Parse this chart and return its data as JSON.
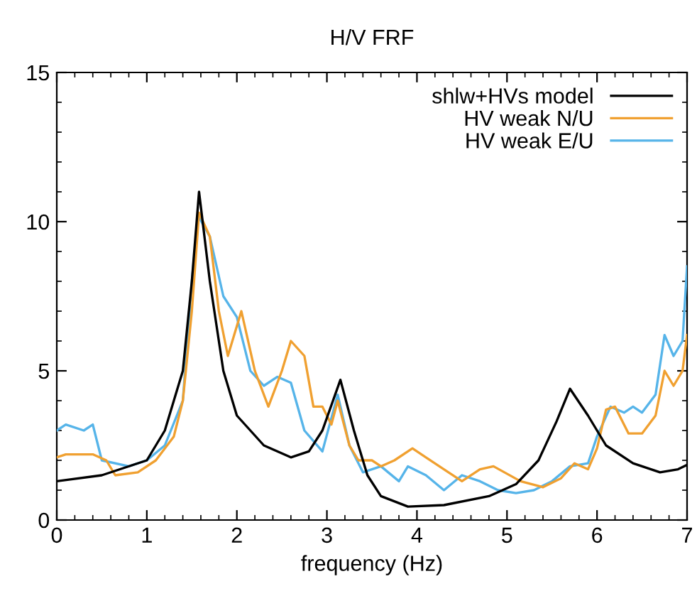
{
  "chart_data": {
    "type": "line",
    "title": "H/V FRF",
    "xlabel": "frequency (Hz)",
    "xlim": [
      0,
      7
    ],
    "xticks": [
      0,
      1,
      2,
      3,
      4,
      5,
      6,
      7
    ],
    "ylim": [
      0,
      15
    ],
    "yticks": [
      0,
      5,
      10,
      15
    ],
    "grid": false,
    "legend": "top right",
    "marker": "none",
    "line_style": "solid",
    "series": [
      {
        "name": "shlw+HVs model",
        "color": "#000000",
        "x": [
          0,
          0.5,
          1.0,
          1.2,
          1.4,
          1.5,
          1.58,
          1.7,
          1.85,
          2.0,
          2.3,
          2.6,
          2.8,
          2.95,
          3.15,
          3.3,
          3.45,
          3.6,
          3.9,
          4.3,
          4.8,
          5.1,
          5.35,
          5.55,
          5.7,
          5.9,
          6.1,
          6.4,
          6.7,
          6.9,
          7.0
        ],
        "values": [
          1.3,
          1.5,
          2.0,
          3.0,
          5.0,
          8.0,
          11.0,
          8.0,
          5.0,
          3.5,
          2.5,
          2.1,
          2.3,
          3.0,
          4.7,
          3.0,
          1.5,
          0.8,
          0.45,
          0.5,
          0.8,
          1.2,
          2.0,
          3.3,
          4.4,
          3.5,
          2.5,
          1.9,
          1.6,
          1.7,
          1.85
        ]
      },
      {
        "name": "HV weak N/U",
        "color": "#f0a030",
        "x": [
          0,
          0.1,
          0.4,
          0.55,
          0.65,
          0.9,
          1.1,
          1.3,
          1.4,
          1.5,
          1.58,
          1.7,
          1.8,
          1.9,
          2.05,
          2.2,
          2.35,
          2.5,
          2.6,
          2.75,
          2.85,
          2.95,
          3.05,
          3.12,
          3.25,
          3.35,
          3.5,
          3.6,
          3.75,
          3.95,
          4.1,
          4.35,
          4.5,
          4.7,
          4.85,
          5.15,
          5.4,
          5.6,
          5.75,
          5.9,
          6.0,
          6.1,
          6.2,
          6.35,
          6.5,
          6.65,
          6.75,
          6.85,
          6.95,
          7.0
        ],
        "values": [
          2.1,
          2.2,
          2.2,
          2.0,
          1.5,
          1.6,
          2.0,
          2.8,
          4.0,
          7.0,
          10.3,
          9.5,
          7.0,
          5.5,
          7.0,
          5.0,
          3.8,
          5.0,
          6.0,
          5.5,
          3.8,
          3.8,
          3.2,
          4.0,
          2.5,
          2.0,
          2.0,
          1.8,
          2.0,
          2.4,
          2.1,
          1.6,
          1.3,
          1.7,
          1.8,
          1.3,
          1.1,
          1.4,
          1.9,
          1.7,
          2.4,
          3.7,
          3.8,
          2.9,
          2.9,
          3.5,
          5.0,
          4.5,
          5.0,
          6.2
        ]
      },
      {
        "name": "HV weak E/U",
        "color": "#56b4e9",
        "x": [
          0,
          0.1,
          0.3,
          0.4,
          0.5,
          0.8,
          1.0,
          1.2,
          1.4,
          1.5,
          1.57,
          1.7,
          1.85,
          2.0,
          2.15,
          2.3,
          2.45,
          2.6,
          2.75,
          2.95,
          3.12,
          3.25,
          3.4,
          3.6,
          3.8,
          3.9,
          4.1,
          4.3,
          4.5,
          4.7,
          4.9,
          5.1,
          5.3,
          5.5,
          5.7,
          5.9,
          6.0,
          6.15,
          6.3,
          6.4,
          6.5,
          6.65,
          6.75,
          6.85,
          6.95,
          7.0
        ],
        "values": [
          3.0,
          3.2,
          3.0,
          3.2,
          2.0,
          1.8,
          2.0,
          2.5,
          4.0,
          8.0,
          10.2,
          9.5,
          7.5,
          6.8,
          5.0,
          4.5,
          4.8,
          4.6,
          3.0,
          2.3,
          4.2,
          2.5,
          1.6,
          1.8,
          1.3,
          1.8,
          1.5,
          1.0,
          1.5,
          1.3,
          1.0,
          0.9,
          1.0,
          1.3,
          1.8,
          1.9,
          2.8,
          3.8,
          3.6,
          3.8,
          3.6,
          4.2,
          6.2,
          5.5,
          6.0,
          8.5
        ]
      }
    ]
  }
}
